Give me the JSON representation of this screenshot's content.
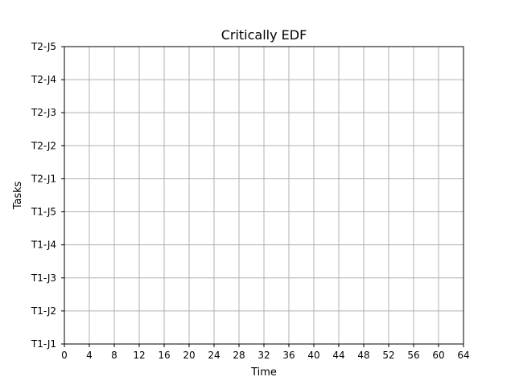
{
  "chart_data": {
    "type": "bar",
    "title": "Critically EDF",
    "xlabel": "Time",
    "ylabel": "Tasks",
    "xlim": [
      0,
      64
    ],
    "x_ticks": [
      0,
      4,
      8,
      12,
      16,
      20,
      24,
      28,
      32,
      36,
      40,
      44,
      48,
      52,
      56,
      60,
      64
    ],
    "categories": [
      "T1-J1",
      "T1-J2",
      "T1-J3",
      "T1-J4",
      "T1-J5",
      "T2-J1",
      "T2-J2",
      "T2-J3",
      "T2-J4",
      "T2-J5"
    ],
    "bars": [],
    "grid": true,
    "colors": {
      "grid": "#b0b0b0",
      "axes": "#000000",
      "background": "#ffffff"
    }
  }
}
